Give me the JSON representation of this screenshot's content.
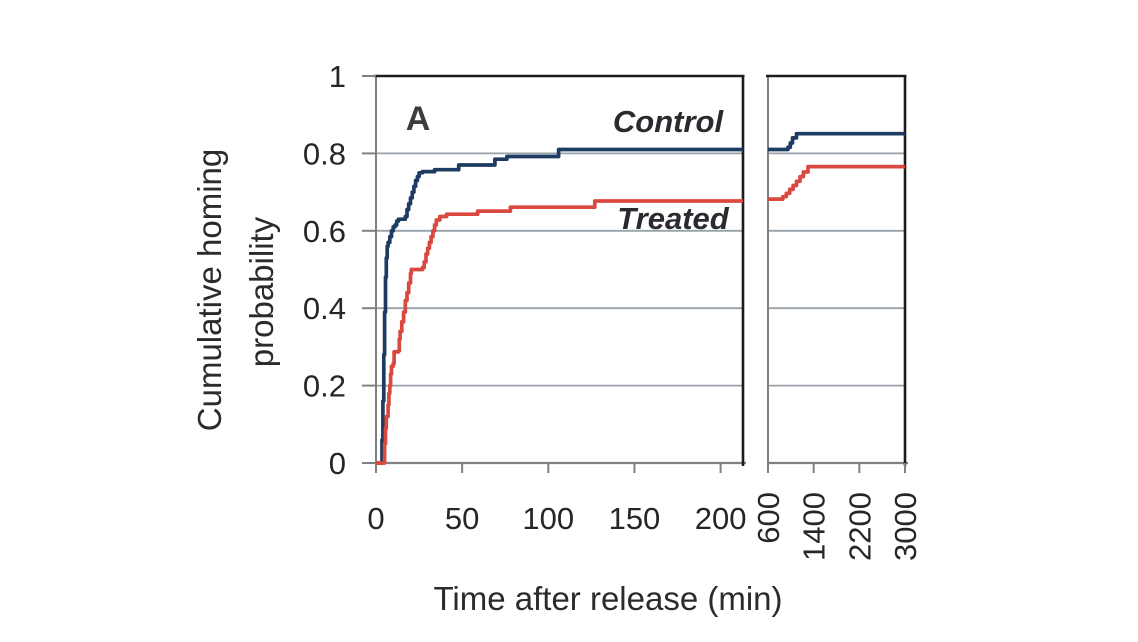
{
  "figure": {
    "panel_letter": "A",
    "x_axis_title": "Time after release (min)",
    "y_axis_title_line1": "Cumulative homing",
    "y_axis_title_line2": "probability",
    "control_label": "Control",
    "treated_label": "Treated"
  },
  "colors": {
    "background": "#ffffff",
    "control_line": "#1e3c62",
    "treated_line": "#d9493f",
    "gridline": "#98a0a8",
    "axis_gray": "#808080",
    "panel_border_black": "#1c1c1c",
    "tick_text": "#262626",
    "title_text": "#2b2b2b"
  },
  "chart_data": {
    "type": "line",
    "style": "step-after cumulative (Kaplan-Meier)",
    "title": "",
    "xlabel": "Time after release (min)",
    "ylabel": "Cumulative homing probability",
    "ylim": [
      0,
      1
    ],
    "y_ticks": [
      0,
      0.2,
      0.4,
      0.6,
      0.8,
      1
    ],
    "y_tick_labels": [
      "0",
      "0.2",
      "0.4",
      "0.6",
      "0.8",
      "1"
    ],
    "gridlines_y": [
      0.2,
      0.4,
      0.6,
      0.8
    ],
    "grid": "horizontal only",
    "broken_x_axis": true,
    "legend_position": "inline labels inside plot",
    "panels": [
      {
        "x_range": [
          0,
          213
        ],
        "x_ticks": [
          0,
          50,
          100,
          150,
          200
        ],
        "x_tick_labels": [
          "0",
          "50",
          "100",
          "150",
          "200"
        ],
        "tick_label_rotation_deg": 0
      },
      {
        "x_range": [
          600,
          3000
        ],
        "x_ticks": [
          600,
          1400,
          2200,
          3000
        ],
        "x_tick_labels": [
          "600",
          "1400",
          "2200",
          "3000"
        ],
        "tick_label_rotation_deg": -90
      }
    ],
    "series": [
      {
        "name": "Control",
        "color": "#1e3c62",
        "points_panel1": [
          [
            0,
            0
          ],
          [
            3,
            0
          ],
          [
            3.5,
            0.06
          ],
          [
            4,
            0.16
          ],
          [
            4.5,
            0.28
          ],
          [
            5,
            0.39
          ],
          [
            5.5,
            0.48
          ],
          [
            6,
            0.53
          ],
          [
            6.5,
            0.56
          ],
          [
            7,
            0.57
          ],
          [
            8,
            0.585
          ],
          [
            9,
            0.6
          ],
          [
            10,
            0.61
          ],
          [
            11,
            0.615
          ],
          [
            12,
            0.625
          ],
          [
            13,
            0.63
          ],
          [
            17,
            0.637
          ],
          [
            18,
            0.655
          ],
          [
            19,
            0.67
          ],
          [
            20,
            0.685
          ],
          [
            21,
            0.7
          ],
          [
            22,
            0.715
          ],
          [
            23,
            0.73
          ],
          [
            24,
            0.74
          ],
          [
            25,
            0.75
          ],
          [
            27,
            0.753
          ],
          [
            34,
            0.758
          ],
          [
            48,
            0.77
          ],
          [
            69,
            0.785
          ],
          [
            76,
            0.792
          ],
          [
            106,
            0.81
          ],
          [
            213,
            0.81
          ]
        ],
        "points_panel2": [
          [
            600,
            0.81
          ],
          [
            950,
            0.816
          ],
          [
            990,
            0.827
          ],
          [
            1030,
            0.84
          ],
          [
            1100,
            0.851
          ],
          [
            3000,
            0.851
          ]
        ]
      },
      {
        "name": "Treated",
        "color": "#d9493f",
        "points_panel1": [
          [
            0,
            0
          ],
          [
            4.5,
            0
          ],
          [
            5,
            0.05
          ],
          [
            5.5,
            0.09
          ],
          [
            6,
            0.12
          ],
          [
            7,
            0.15
          ],
          [
            7.5,
            0.18
          ],
          [
            8,
            0.2
          ],
          [
            8.5,
            0.23
          ],
          [
            9,
            0.25
          ],
          [
            10,
            0.257
          ],
          [
            10.5,
            0.287
          ],
          [
            13,
            0.29
          ],
          [
            13.5,
            0.32
          ],
          [
            14,
            0.34
          ],
          [
            15,
            0.365
          ],
          [
            16,
            0.39
          ],
          [
            17,
            0.42
          ],
          [
            18,
            0.44
          ],
          [
            19,
            0.465
          ],
          [
            20,
            0.49
          ],
          [
            20.5,
            0.5
          ],
          [
            27,
            0.505
          ],
          [
            28,
            0.52
          ],
          [
            29,
            0.54
          ],
          [
            30,
            0.555
          ],
          [
            31,
            0.57
          ],
          [
            32,
            0.585
          ],
          [
            33,
            0.6
          ],
          [
            34,
            0.615
          ],
          [
            35,
            0.628
          ],
          [
            37,
            0.637
          ],
          [
            41,
            0.643
          ],
          [
            59,
            0.651
          ],
          [
            78,
            0.661
          ],
          [
            127,
            0.677
          ],
          [
            213,
            0.677
          ]
        ],
        "points_panel2": [
          [
            600,
            0.682
          ],
          [
            860,
            0.688
          ],
          [
            920,
            0.697
          ],
          [
            980,
            0.707
          ],
          [
            1040,
            0.717
          ],
          [
            1100,
            0.728
          ],
          [
            1160,
            0.74
          ],
          [
            1220,
            0.752
          ],
          [
            1300,
            0.766
          ],
          [
            3000,
            0.766
          ]
        ]
      }
    ]
  }
}
